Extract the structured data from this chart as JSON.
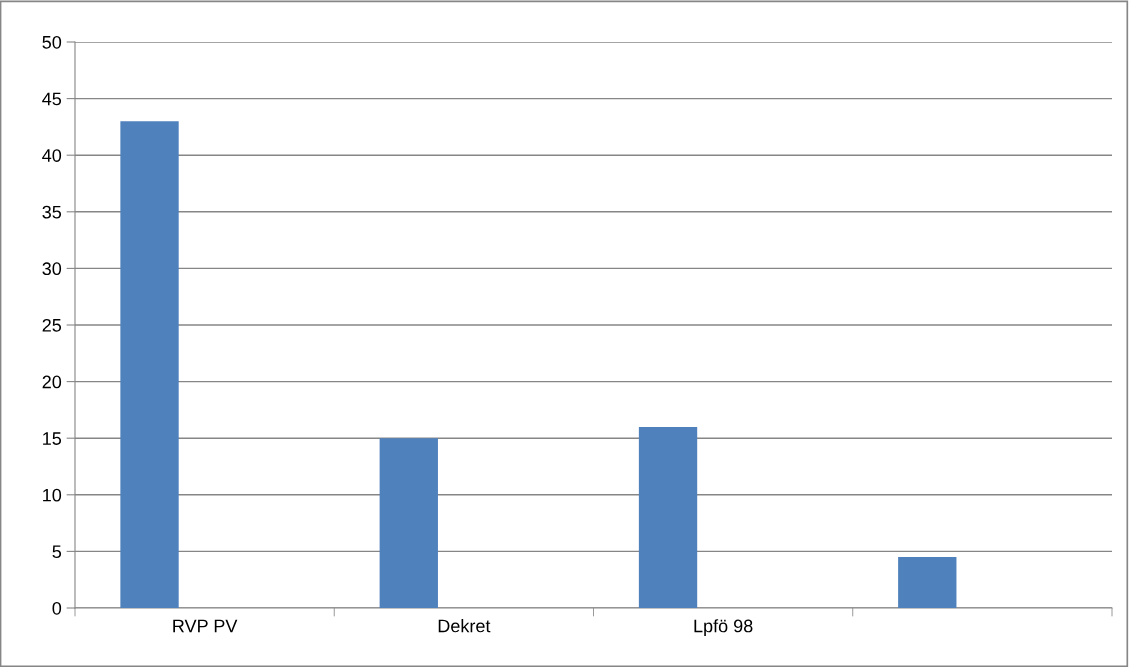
{
  "chart_data": {
    "type": "bar",
    "categories": [
      "RVP PV",
      "Dekret",
      "Lpfö 98",
      null
    ],
    "values": [
      43,
      15,
      16,
      4.5
    ],
    "color": "#4f81bd",
    "ylim": [
      0,
      50
    ],
    "yticks": [
      0,
      5,
      10,
      15,
      20,
      25,
      30,
      35,
      40,
      45,
      50
    ],
    "grid": "y",
    "legend": false
  }
}
